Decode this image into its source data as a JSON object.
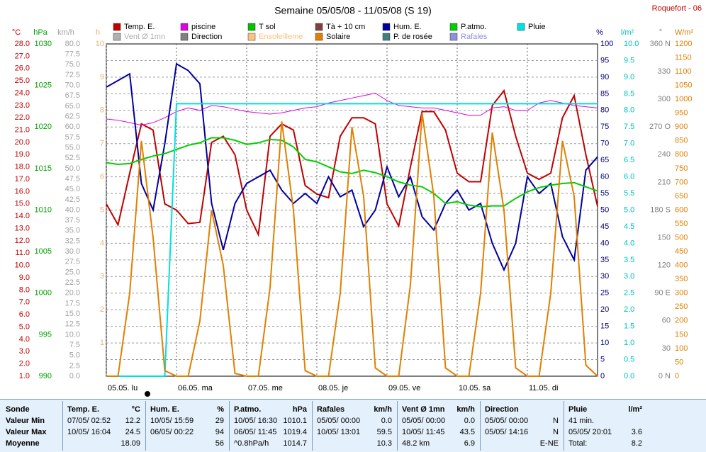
{
  "chart_data": {
    "type": "line",
    "title": "Semaine 05/05/08 - 11/05/08 (S 19)",
    "station": "Roquefort - 06",
    "x": [
      0,
      4,
      8,
      12,
      16,
      20,
      24,
      28,
      32,
      36,
      40,
      44,
      48,
      52,
      56,
      60,
      64,
      68,
      72,
      76,
      80,
      84,
      88,
      92,
      96,
      100,
      104,
      108,
      112,
      116,
      120,
      124,
      128,
      132,
      136,
      140,
      144,
      148,
      152,
      156,
      160,
      164,
      168
    ],
    "xlim": [
      0,
      168
    ],
    "xticks": [
      {
        "value": 0,
        "label": "05.05.  lu"
      },
      {
        "value": 24,
        "label": "06.05.  ma"
      },
      {
        "value": 48,
        "label": "07.05.  me"
      },
      {
        "value": 72,
        "label": "08.05.  je"
      },
      {
        "value": 96,
        "label": "09.05.  ve"
      },
      {
        "value": 120,
        "label": "10.05.  sa"
      },
      {
        "value": 144,
        "label": "11.05.  di"
      }
    ],
    "grid": true,
    "axes": [
      {
        "label": "°C",
        "color": "#c00000",
        "lim": [
          1,
          28
        ],
        "ticks": [
          {
            "value": 1,
            "label": "1.0"
          },
          {
            "value": 2,
            "label": "2.0"
          },
          {
            "value": 3,
            "label": "3.0"
          },
          {
            "value": 4,
            "label": "4.0"
          },
          {
            "value": 5,
            "label": "5.0"
          },
          {
            "value": 6,
            "label": "6.0"
          },
          {
            "value": 7,
            "label": "7.0"
          },
          {
            "value": 8,
            "label": "8.0"
          },
          {
            "value": 9,
            "label": "9.0"
          },
          {
            "value": 10,
            "label": "10.0"
          },
          {
            "value": 11,
            "label": "11.0"
          },
          {
            "value": 12,
            "label": "12.0"
          },
          {
            "value": 13,
            "label": "13.0"
          },
          {
            "value": 14,
            "label": "14.0"
          },
          {
            "value": 15,
            "label": "15.0"
          },
          {
            "value": 16,
            "label": "16.0"
          },
          {
            "value": 17,
            "label": "17.0"
          },
          {
            "value": 18,
            "label": "18.0"
          },
          {
            "value": 19,
            "label": "19.0"
          },
          {
            "value": 20,
            "label": "20.0"
          },
          {
            "value": 21,
            "label": "21.0"
          },
          {
            "value": 22,
            "label": "22.0"
          },
          {
            "value": 23,
            "label": "23.0"
          },
          {
            "value": 24,
            "label": "24.0"
          },
          {
            "value": 25,
            "label": "25.0"
          },
          {
            "value": 26,
            "label": "26.0"
          },
          {
            "value": 27,
            "label": "27.0"
          },
          {
            "value": 28,
            "label": "28.0"
          }
        ]
      },
      {
        "label": "hPa",
        "color": "#00a000",
        "lim": [
          990,
          1030
        ],
        "ticks": [
          990,
          995,
          1000,
          1005,
          1010,
          1015,
          1020,
          1025,
          1030
        ]
      },
      {
        "label": "km/h",
        "color": "#a0a0a0",
        "lim": [
          0,
          80
        ],
        "ticks": [
          {
            "value": 0,
            "label": "0.0"
          },
          {
            "value": 2.5,
            "label": "2.5"
          },
          {
            "value": 5,
            "label": "5.0"
          },
          {
            "value": 7.5,
            "label": "7.5"
          },
          {
            "value": 10,
            "label": "10.0"
          },
          {
            "value": 12.5,
            "label": "12.5"
          },
          {
            "value": 15,
            "label": "15.0"
          },
          {
            "value": 17.5,
            "label": "17.5"
          },
          {
            "value": 20,
            "label": "20.0"
          },
          {
            "value": 22.5,
            "label": "22.5"
          },
          {
            "value": 25,
            "label": "25.0"
          },
          {
            "value": 27.5,
            "label": "27.5"
          },
          {
            "value": 30,
            "label": "30.0"
          },
          {
            "value": 32.5,
            "label": "32.5"
          },
          {
            "value": 35,
            "label": "35.0"
          },
          {
            "value": 37.5,
            "label": "37.5"
          },
          {
            "value": 40,
            "label": "40.0"
          },
          {
            "value": 42.5,
            "label": "42.5"
          },
          {
            "value": 45,
            "label": "45.0"
          },
          {
            "value": 47.5,
            "label": "47.5"
          },
          {
            "value": 50,
            "label": "50.0"
          },
          {
            "value": 52.5,
            "label": "52.5"
          },
          {
            "value": 55,
            "label": "55.0"
          },
          {
            "value": 57.5,
            "label": "57.5"
          },
          {
            "value": 60,
            "label": "60.0"
          },
          {
            "value": 62.5,
            "label": "62.5"
          },
          {
            "value": 65,
            "label": "65.0"
          },
          {
            "value": 67.5,
            "label": "67.5"
          },
          {
            "value": 70,
            "label": "70.0"
          },
          {
            "value": 72.5,
            "label": "72.5"
          },
          {
            "value": 75,
            "label": "75.0"
          },
          {
            "value": 77.5,
            "label": "77.5"
          },
          {
            "value": 80,
            "label": "80.0"
          }
        ]
      },
      {
        "label": "h",
        "color": "#f0b070",
        "lim": [
          0,
          10
        ],
        "ticks": [
          1,
          2,
          3,
          4,
          5,
          6,
          7,
          8,
          9,
          10
        ]
      },
      {
        "label": "%",
        "color": "#000080",
        "lim": [
          0,
          100
        ],
        "ticks": [
          0,
          5,
          10,
          15,
          20,
          25,
          30,
          35,
          40,
          45,
          50,
          55,
          60,
          65,
          70,
          75,
          80,
          85,
          90,
          95,
          100
        ]
      },
      {
        "label": "l/m²",
        "color": "#00c0c0",
        "lim": [
          0,
          10
        ],
        "ticks": [
          {
            "value": 0,
            "label": "0.0"
          },
          {
            "value": 0.5,
            "label": "0.5"
          },
          {
            "value": 1,
            "label": "1.0"
          },
          {
            "value": 1.5,
            "label": "1.5"
          },
          {
            "value": 2,
            "label": "2.0"
          },
          {
            "value": 2.5,
            "label": "2.5"
          },
          {
            "value": 3,
            "label": "3.0"
          },
          {
            "value": 3.5,
            "label": "3.5"
          },
          {
            "value": 4,
            "label": "4.0"
          },
          {
            "value": 4.5,
            "label": "4.5"
          },
          {
            "value": 5,
            "label": "5.0"
          },
          {
            "value": 5.5,
            "label": "5.5"
          },
          {
            "value": 6,
            "label": "6.0"
          },
          {
            "value": 6.5,
            "label": "6.5"
          },
          {
            "value": 7,
            "label": "7.0"
          },
          {
            "value": 7.5,
            "label": "7.5"
          },
          {
            "value": 8,
            "label": "8.0"
          },
          {
            "value": 8.5,
            "label": "8.5"
          },
          {
            "value": 9,
            "label": "9.0"
          },
          {
            "value": 9.5,
            "label": "9.5"
          },
          {
            "value": 10,
            "label": "10.0"
          }
        ]
      },
      {
        "label": "°",
        "color": "#808080",
        "lim": [
          0,
          360
        ],
        "ticks": [
          {
            "value": 0,
            "label": "0   N"
          },
          30,
          60,
          {
            "value": 90,
            "label": "90   E"
          },
          120,
          150,
          {
            "value": 180,
            "label": "180   S"
          },
          210,
          240,
          {
            "value": 270,
            "label": "270   O"
          },
          300,
          330,
          {
            "value": 360,
            "label": "360   N"
          }
        ]
      },
      {
        "label": "W/m²",
        "color": "#e08000",
        "lim": [
          0,
          1200
        ],
        "ticks": [
          0,
          50,
          100,
          150,
          200,
          250,
          300,
          350,
          400,
          450,
          500,
          550,
          600,
          650,
          700,
          750,
          800,
          850,
          900,
          950,
          1000,
          1050,
          1100,
          1150,
          1200
        ]
      }
    ],
    "series": [
      {
        "name": "Temp. E.",
        "color": "#c00000",
        "axis": "°C",
        "values": [
          15.0,
          13.3,
          17.5,
          21.5,
          21.0,
          15.0,
          14.5,
          13.4,
          13.5,
          20.0,
          20.5,
          19.0,
          14.5,
          12.5,
          20.5,
          21.5,
          21.0,
          16.5,
          15.8,
          15.5,
          20.5,
          22.0,
          22.0,
          21.5,
          15.0,
          13.2,
          18.0,
          22.5,
          22.5,
          21.0,
          17.5,
          16.8,
          16.8,
          23.0,
          24.2,
          20.5,
          17.5,
          17.0,
          17.5,
          22.0,
          23.8,
          19.0,
          14.8
        ]
      },
      {
        "name": "piscine",
        "color": "#e000e0",
        "axis": "°C",
        "values": [
          21.9,
          21.8,
          21.6,
          21.4,
          21.6,
          22.0,
          22.5,
          22.8,
          22.6,
          23.0,
          22.9,
          22.7,
          22.5,
          22.4,
          22.3,
          22.4,
          22.6,
          22.8,
          22.9,
          23.2,
          23.4,
          23.6,
          23.8,
          24.0,
          23.4,
          23.0,
          22.9,
          22.8,
          22.8,
          22.6,
          22.4,
          22.2,
          22.2,
          22.8,
          22.9,
          22.6,
          22.6,
          23.2,
          23.4,
          23.2,
          23.0,
          22.9,
          22.8
        ]
      },
      {
        "name": "Hum. E.",
        "color": "#0000a0",
        "axis": "%",
        "values": [
          87,
          89,
          91,
          58,
          50,
          70,
          94,
          92,
          88,
          52,
          38,
          52,
          58,
          60,
          62,
          56,
          52,
          55,
          52,
          60,
          54,
          56,
          45,
          50,
          63,
          54,
          60,
          48,
          44,
          52,
          56,
          50,
          52,
          40,
          32,
          40,
          60,
          55,
          58,
          42,
          35,
          62,
          66
        ]
      },
      {
        "name": "P.atmo.",
        "color": "#00d000",
        "axis": "hPa",
        "values": [
          1015.7,
          1015.5,
          1015.6,
          1016.1,
          1016.5,
          1016.8,
          1017.3,
          1017.8,
          1018.1,
          1018.7,
          1018.7,
          1018.4,
          1017.9,
          1018.1,
          1018.5,
          1018.4,
          1017.6,
          1016.1,
          1015.8,
          1015.2,
          1014.6,
          1014.4,
          1014.8,
          1014.5,
          1014.0,
          1013.4,
          1013.0,
          1012.8,
          1012.0,
          1010.8,
          1011.0,
          1010.6,
          1010.4,
          1010.5,
          1010.5,
          1011.4,
          1012.2,
          1012.7,
          1013.0,
          1013.2,
          1013.3,
          1012.8,
          1012.3
        ]
      },
      {
        "name": "Pluie",
        "color": "#00e0e0",
        "axis": "l/m²",
        "values": [
          0,
          0,
          0,
          0,
          0,
          0,
          8.2,
          8.2,
          8.2,
          8.2,
          8.2,
          8.2,
          8.2,
          8.2,
          8.2,
          8.2,
          8.2,
          8.2,
          8.2,
          8.2,
          8.2,
          8.2,
          8.2,
          8.2,
          8.2,
          8.2,
          8.2,
          8.2,
          8.2,
          8.2,
          8.2,
          8.2,
          8.2,
          8.2,
          8.2,
          8.2,
          8.2,
          8.2,
          8.2,
          8.2,
          8.2,
          8.2,
          8.2
        ]
      },
      {
        "name": "Solaire",
        "color": "#e08000",
        "axis": "W/m²",
        "values": [
          0,
          0,
          300,
          850,
          500,
          20,
          0,
          0,
          200,
          600,
          400,
          10,
          0,
          0,
          320,
          920,
          600,
          20,
          0,
          0,
          300,
          900,
          650,
          30,
          0,
          0,
          330,
          950,
          650,
          30,
          0,
          0,
          300,
          880,
          600,
          30,
          0,
          0,
          300,
          850,
          650,
          40,
          0
        ]
      }
    ],
    "legend_only": [
      {
        "name": "T sol",
        "color": "#00c000"
      },
      {
        "name": "Tà + 10 cm",
        "color": "#804040"
      },
      {
        "name": "Vent Ø 1mn",
        "color": "#b0b0b0"
      },
      {
        "name": "Direction",
        "color": "#808080"
      },
      {
        "name": "Ensoleilleme",
        "color": "#ffc080"
      },
      {
        "name": "P. de rosée",
        "color": "#408080"
      },
      {
        "name": "Rafales",
        "color": "#9090e0"
      }
    ]
  },
  "table": {
    "corner": "Sonde",
    "row_labels": [
      "Valeur Min",
      "Valeur Max",
      "Moyenne"
    ],
    "columns": [
      {
        "title": "Temp. E.",
        "unit": "°C",
        "cells": [
          [
            "07/05/  02:52",
            "12.2"
          ],
          [
            "10/05/  16:04",
            "24.5"
          ],
          [
            null,
            "18.09"
          ]
        ]
      },
      {
        "title": "Hum. E.",
        "unit": "%",
        "cells": [
          [
            "10/05/  15:59",
            "29"
          ],
          [
            "06/05/  00:22",
            "94"
          ],
          [
            null,
            "56"
          ]
        ]
      },
      {
        "title": "P.atmo.",
        "unit": "hPa",
        "cells": [
          [
            "10/05/  16:30",
            "1010.1"
          ],
          [
            "06/05/  11:45",
            "1019.4"
          ],
          [
            "^0.8hPa/h",
            "1014.7"
          ]
        ]
      },
      {
        "title": "Rafales",
        "unit": "km/h",
        "cells": [
          [
            "05/05/  00:00",
            "0.0"
          ],
          [
            "10/05/  13:01",
            "59.5"
          ],
          [
            null,
            "10.3"
          ]
        ]
      },
      {
        "title": "Vent Ø 1mn",
        "unit": "km/h",
        "cells": [
          [
            "05/05/  00:00",
            "0.0"
          ],
          [
            "10/05/  11:45",
            "43.5"
          ],
          [
            "48.2 km",
            "6.9"
          ]
        ]
      },
      {
        "title": "Direction",
        "unit": null,
        "cells": [
          [
            "05/05/  00:00",
            "N"
          ],
          [
            "05/05/  14:16",
            "N"
          ],
          [
            null,
            "E-NE"
          ]
        ]
      },
      {
        "title": "Pluie",
        "unit": "l/m²",
        "cells": [
          [
            "41 min.",
            null
          ],
          [
            "05/05/  20:01",
            "3.6"
          ],
          [
            "Total:",
            "8.2"
          ]
        ]
      }
    ]
  }
}
